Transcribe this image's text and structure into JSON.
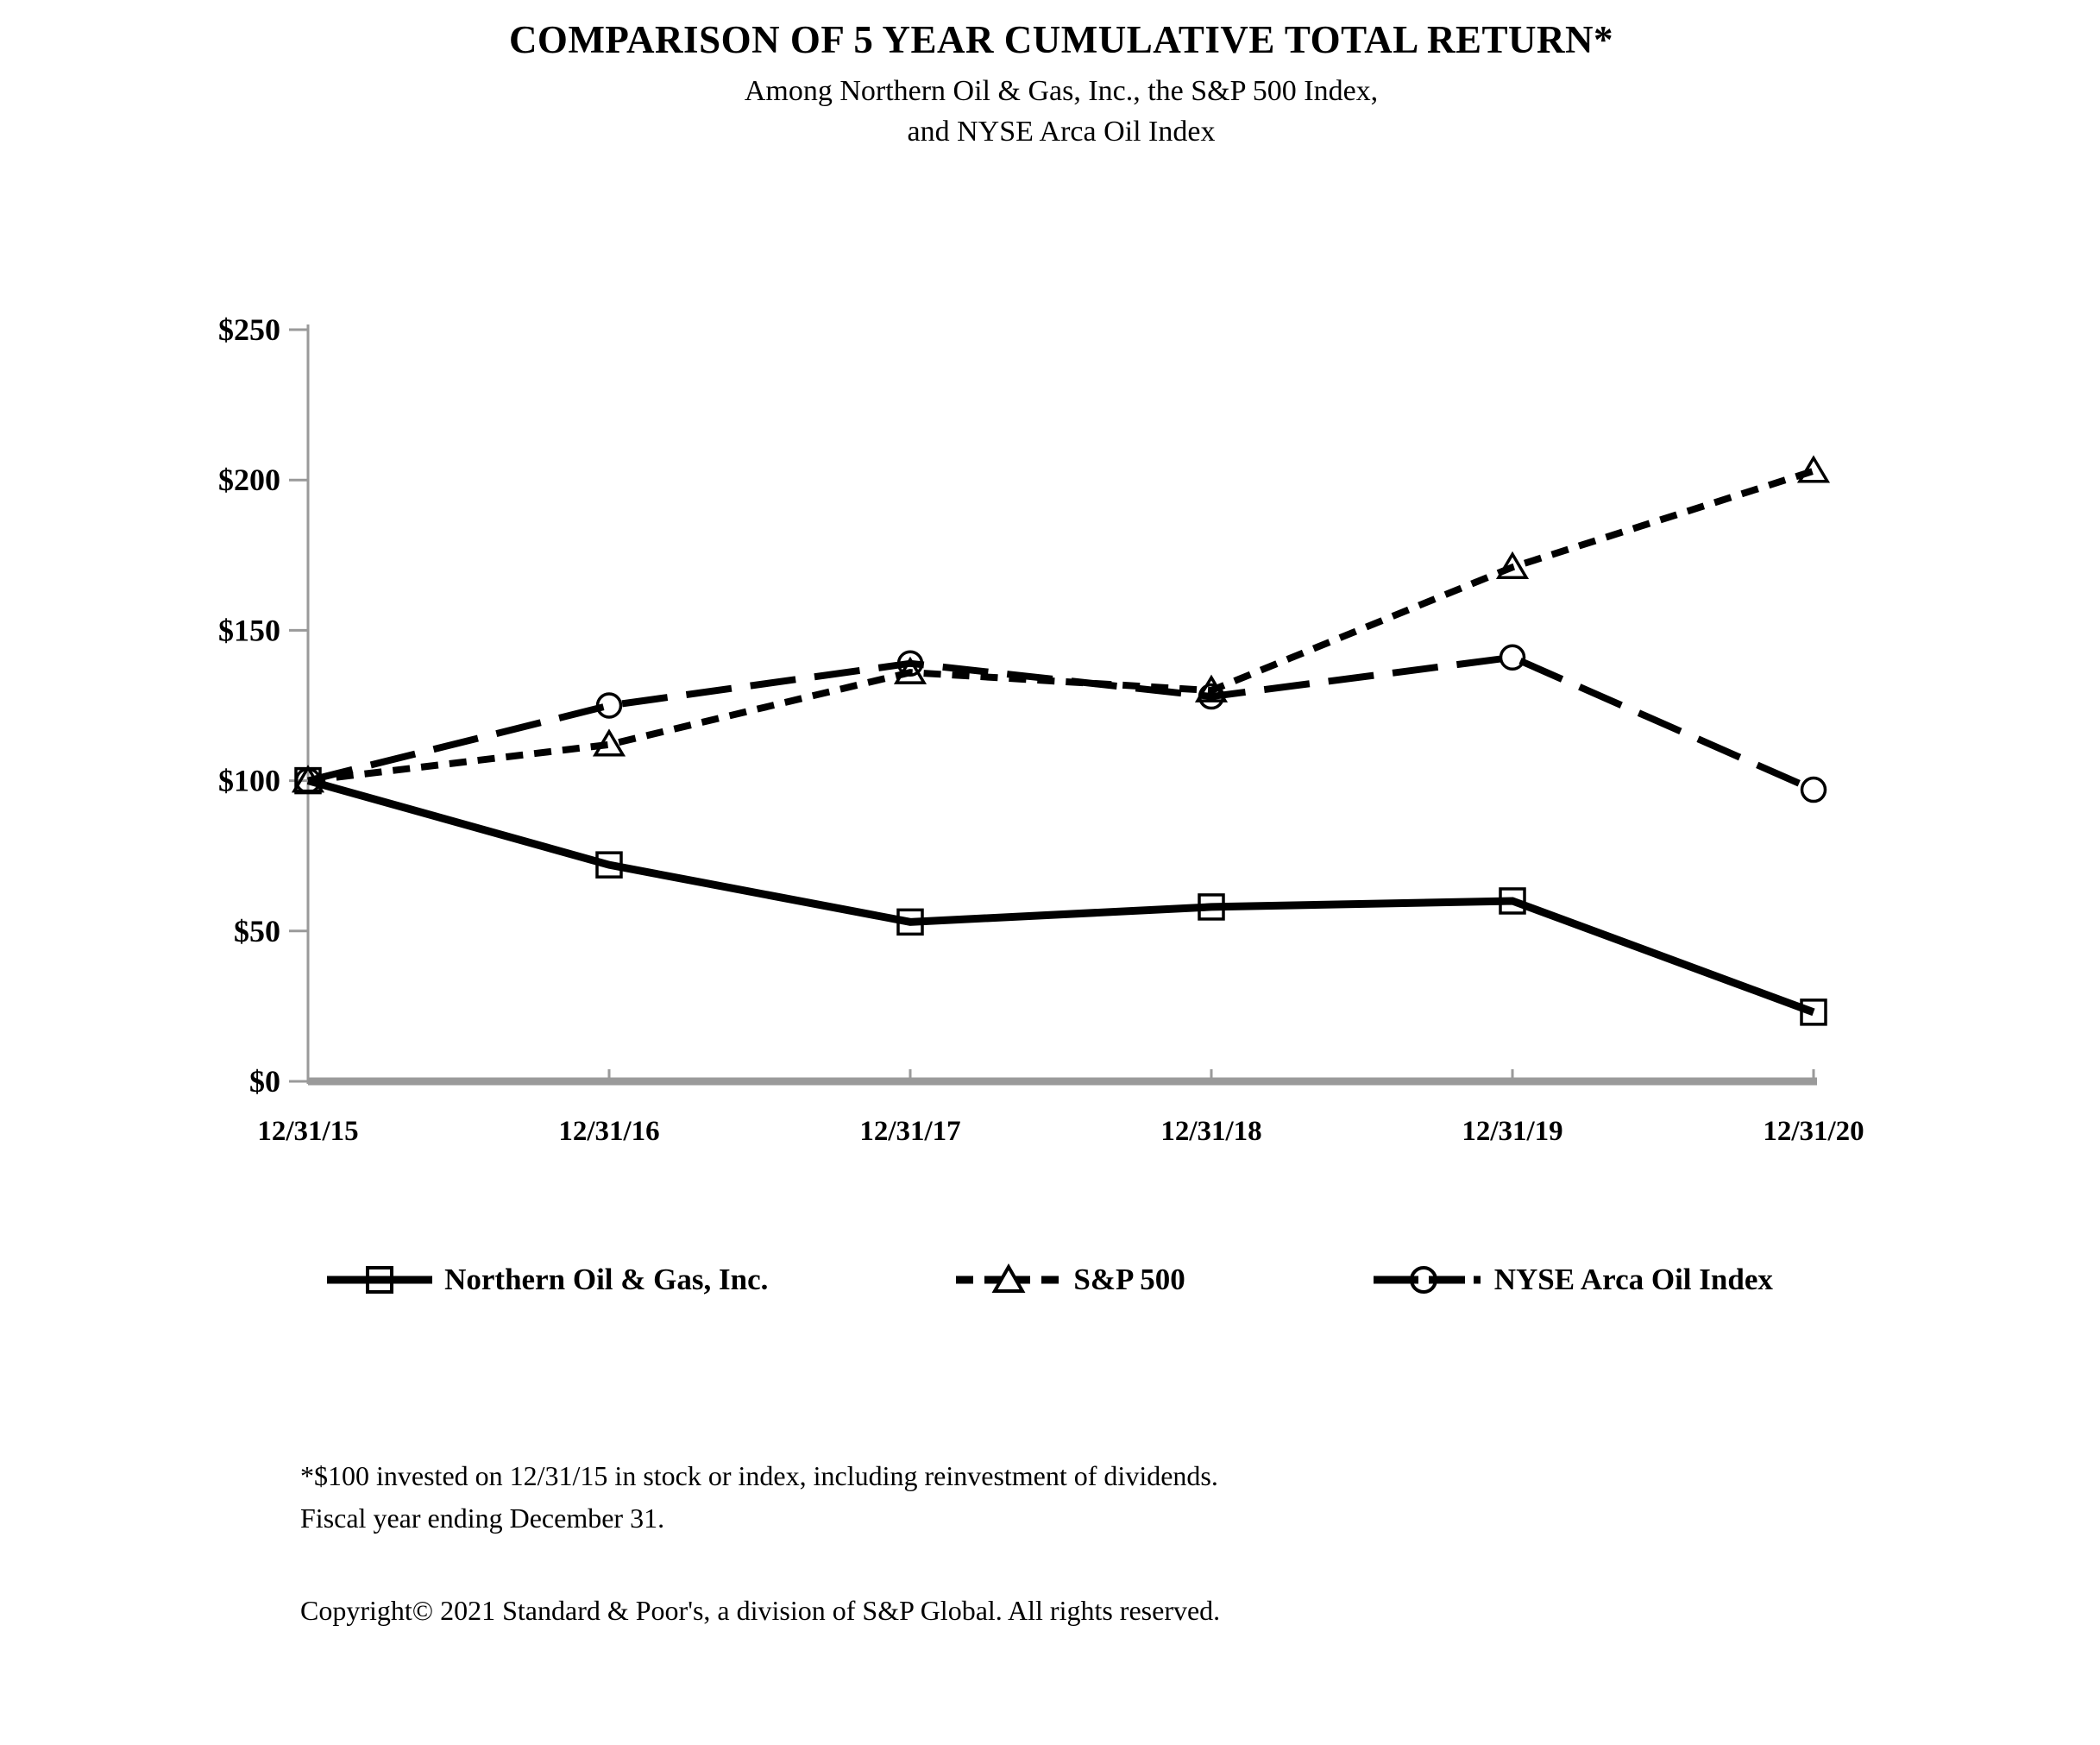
{
  "title": "COMPARISON OF 5 YEAR CUMULATIVE TOTAL RETURN*",
  "subtitle": {
    "line1": "Among Northern Oil & Gas, Inc., the S&P 500 Index,",
    "line2": "and NYSE Arca Oil Index"
  },
  "footnotes": {
    "line1": "*$100 invested on 12/31/15 in stock or index, including reinvestment of dividends.",
    "line2": "Fiscal year ending December 31.",
    "copyright": "Copyright© 2021 Standard & Poor's, a division of S&P Global. All rights reserved."
  },
  "colors": {
    "series": "#000000",
    "axis": "#9a9a9a",
    "background": "#ffffff",
    "marker_fill": "none"
  },
  "chart_data": {
    "type": "line",
    "title": "COMPARISON OF 5 YEAR CUMULATIVE TOTAL RETURN*",
    "subtitle": "Among Northern Oil & Gas, Inc., the S&P 500 Index, and NYSE Arca Oil Index",
    "categories": [
      "12/31/15",
      "12/31/16",
      "12/31/17",
      "12/31/18",
      "12/31/19",
      "12/31/20"
    ],
    "series": [
      {
        "name": "Northern Oil & Gas, Inc.",
        "marker": "square",
        "line_style": "solid",
        "values": [
          100,
          72,
          53,
          58,
          60,
          23
        ]
      },
      {
        "name": "S&P 500",
        "marker": "triangle",
        "line_style": "dotted",
        "values": [
          100,
          112,
          136,
          130,
          171,
          203
        ]
      },
      {
        "name": "NYSE Arca Oil Index",
        "marker": "circle",
        "line_style": "long-dash",
        "values": [
          100,
          125,
          139,
          128,
          141,
          97
        ]
      }
    ],
    "xlabel": "",
    "ylabel": "",
    "ylim": [
      0,
      250
    ],
    "yticks": [
      {
        "value": 0,
        "label": "$0"
      },
      {
        "value": 50,
        "label": "$50"
      },
      {
        "value": 100,
        "label": "$100"
      },
      {
        "value": 150,
        "label": "$150"
      },
      {
        "value": 200,
        "label": "$200"
      },
      {
        "value": 250,
        "label": "$250"
      }
    ],
    "grid": false,
    "legend_position": "bottom"
  }
}
